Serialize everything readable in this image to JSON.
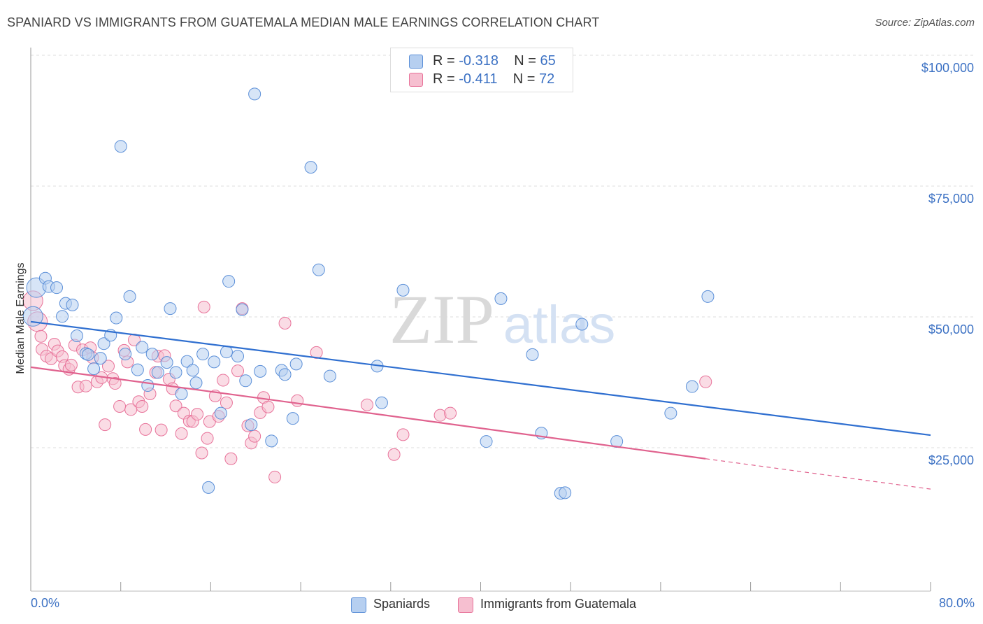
{
  "title": "SPANIARD VS IMMIGRANTS FROM GUATEMALA MEDIAN MALE EARNINGS CORRELATION CHART",
  "source": "Source: ZipAtlas.com",
  "watermark": {
    "zip": "ZIP",
    "atlas": "atlas"
  },
  "stats": [
    {
      "r_label": "R = ",
      "r_value": "-0.318",
      "n_label": "N = ",
      "n_value": "65"
    },
    {
      "r_label": "R = ",
      "r_value": "-0.411",
      "n_label": "N = ",
      "n_value": "72"
    }
  ],
  "legend": {
    "series1": "Spaniards",
    "series2": "Immigrants from Guatemala"
  },
  "colors": {
    "blue": "#5b8fd8",
    "blue_fill": "#b6cff0",
    "pink": "#e8739a",
    "pink_fill": "#f6bfd0",
    "tick_text": "#3d72c4"
  },
  "chart_data": {
    "type": "scatter",
    "xlabel": "",
    "ylabel": "Median Male Earnings",
    "xlim": [
      0,
      80
    ],
    "ylim": [
      0,
      105000
    ],
    "x_tick_labels": {
      "min": "0.0%",
      "max": "80.0%"
    },
    "y_ticks": [
      {
        "value": 25000,
        "label": "$25,000"
      },
      {
        "value": 50000,
        "label": "$50,000"
      },
      {
        "value": 75000,
        "label": "$75,000"
      },
      {
        "value": 100000,
        "label": "$100,000"
      }
    ],
    "series": [
      {
        "name": "Spaniards",
        "r": -0.318,
        "n": 65,
        "trend": {
          "x0": 0,
          "y0": 51500,
          "x1": 80,
          "y1": 29800
        },
        "points": [
          [
            0.2,
            52500
          ],
          [
            0.5,
            58000
          ],
          [
            1.3,
            59800
          ],
          [
            1.6,
            58200
          ],
          [
            2.3,
            58000
          ],
          [
            2.8,
            52500
          ],
          [
            3.1,
            55000
          ],
          [
            3.7,
            54700
          ],
          [
            4.1,
            48800
          ],
          [
            4.9,
            45400
          ],
          [
            5.1,
            45200
          ],
          [
            5.6,
            42500
          ],
          [
            6.2,
            44500
          ],
          [
            6.5,
            47300
          ],
          [
            7.1,
            48900
          ],
          [
            7.6,
            52200
          ],
          [
            8.0,
            85000
          ],
          [
            8.4,
            45300
          ],
          [
            8.8,
            56300
          ],
          [
            9.5,
            42300
          ],
          [
            9.9,
            46600
          ],
          [
            10.4,
            39300
          ],
          [
            10.8,
            45300
          ],
          [
            11.3,
            41800
          ],
          [
            12.1,
            43700
          ],
          [
            12.4,
            54000
          ],
          [
            12.9,
            41800
          ],
          [
            13.4,
            37700
          ],
          [
            13.9,
            43900
          ],
          [
            14.4,
            42200
          ],
          [
            14.7,
            39800
          ],
          [
            15.3,
            45300
          ],
          [
            15.8,
            19800
          ],
          [
            16.3,
            43800
          ],
          [
            16.9,
            34000
          ],
          [
            17.4,
            45700
          ],
          [
            17.6,
            59200
          ],
          [
            18.4,
            44900
          ],
          [
            18.8,
            53800
          ],
          [
            19.1,
            40200
          ],
          [
            19.6,
            31800
          ],
          [
            19.9,
            95000
          ],
          [
            20.4,
            42000
          ],
          [
            21.4,
            28700
          ],
          [
            22.3,
            42200
          ],
          [
            22.6,
            41400
          ],
          [
            23.3,
            33000
          ],
          [
            23.6,
            43400
          ],
          [
            24.9,
            81000
          ],
          [
            25.6,
            61400
          ],
          [
            26.6,
            41100
          ],
          [
            30.8,
            43000
          ],
          [
            31.2,
            36000
          ],
          [
            33.1,
            57500
          ],
          [
            40.5,
            28600
          ],
          [
            41.8,
            55900
          ],
          [
            44.6,
            45200
          ],
          [
            45.4,
            30200
          ],
          [
            47.1,
            18700
          ],
          [
            47.5,
            18800
          ],
          [
            49.0,
            51000
          ],
          [
            52.1,
            28600
          ],
          [
            56.9,
            34000
          ],
          [
            58.8,
            39100
          ],
          [
            60.2,
            56300
          ]
        ]
      },
      {
        "name": "Immigrants from Guatemala",
        "r": -0.411,
        "n": 72,
        "trend": {
          "x0": 0,
          "y0": 42800,
          "x1": 60,
          "y1": 25300
        },
        "trend_dashed": {
          "x0": 60,
          "y0": 25300,
          "x1": 80,
          "y1": 19500
        },
        "points": [
          [
            0.2,
            55500
          ],
          [
            0.6,
            51500
          ],
          [
            0.9,
            48700
          ],
          [
            1.0,
            46200
          ],
          [
            1.4,
            44900
          ],
          [
            1.8,
            44400
          ],
          [
            2.1,
            47200
          ],
          [
            2.4,
            45900
          ],
          [
            2.8,
            44800
          ],
          [
            3.0,
            43100
          ],
          [
            3.4,
            42400
          ],
          [
            3.6,
            43200
          ],
          [
            3.9,
            47000
          ],
          [
            4.2,
            39000
          ],
          [
            4.6,
            46100
          ],
          [
            4.9,
            39200
          ],
          [
            5.3,
            46500
          ],
          [
            5.5,
            44600
          ],
          [
            5.9,
            40000
          ],
          [
            6.3,
            40800
          ],
          [
            6.6,
            31800
          ],
          [
            6.9,
            43000
          ],
          [
            7.3,
            40600
          ],
          [
            7.5,
            39700
          ],
          [
            7.9,
            35300
          ],
          [
            8.3,
            46000
          ],
          [
            8.6,
            43800
          ],
          [
            8.9,
            34700
          ],
          [
            9.2,
            48000
          ],
          [
            9.6,
            36200
          ],
          [
            9.9,
            35300
          ],
          [
            10.2,
            30900
          ],
          [
            10.6,
            37700
          ],
          [
            11.1,
            41800
          ],
          [
            11.3,
            44900
          ],
          [
            11.6,
            30800
          ],
          [
            11.9,
            45000
          ],
          [
            12.3,
            40500
          ],
          [
            12.6,
            38700
          ],
          [
            12.9,
            35400
          ],
          [
            13.4,
            30100
          ],
          [
            13.6,
            34000
          ],
          [
            14.1,
            32500
          ],
          [
            14.4,
            32400
          ],
          [
            14.8,
            33800
          ],
          [
            15.2,
            26400
          ],
          [
            15.4,
            54300
          ],
          [
            15.7,
            29200
          ],
          [
            15.9,
            32400
          ],
          [
            16.4,
            37300
          ],
          [
            16.7,
            33400
          ],
          [
            17.1,
            40300
          ],
          [
            17.4,
            36000
          ],
          [
            17.8,
            25300
          ],
          [
            18.4,
            42100
          ],
          [
            18.8,
            54000
          ],
          [
            19.3,
            31600
          ],
          [
            19.6,
            28300
          ],
          [
            19.9,
            29600
          ],
          [
            20.4,
            34100
          ],
          [
            20.7,
            37000
          ],
          [
            21.1,
            35200
          ],
          [
            21.7,
            21800
          ],
          [
            22.6,
            51200
          ],
          [
            23.7,
            36400
          ],
          [
            25.4,
            45600
          ],
          [
            29.9,
            35600
          ],
          [
            32.3,
            26100
          ],
          [
            33.1,
            29900
          ],
          [
            36.4,
            33600
          ],
          [
            37.3,
            34000
          ],
          [
            60.0,
            40000
          ]
        ]
      }
    ]
  }
}
